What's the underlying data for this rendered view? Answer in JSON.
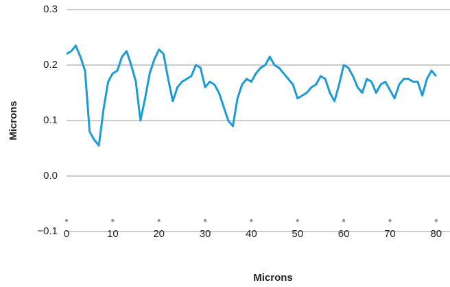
{
  "chart_data": {
    "type": "line",
    "x_label": "Microns",
    "y_label": "Microns",
    "x": [
      0,
      1,
      2,
      3,
      4,
      5,
      6,
      7,
      8,
      9,
      10,
      11,
      12,
      13,
      14,
      15,
      16,
      17,
      18,
      19,
      20,
      21,
      22,
      23,
      24,
      25,
      26,
      27,
      28,
      29,
      30,
      31,
      32,
      33,
      34,
      35,
      36,
      37,
      38,
      39,
      40,
      41,
      42,
      43,
      44,
      45,
      46,
      47,
      48,
      49,
      50,
      51,
      52,
      53,
      54,
      55,
      56,
      57,
      58,
      59,
      60,
      61,
      62,
      63,
      64,
      65,
      66,
      67,
      68,
      69,
      70,
      71,
      72,
      73,
      74,
      75,
      76,
      77,
      78,
      79,
      80
    ],
    "series": [
      {
        "color": "#1b9bd7",
        "values": [
          0.22,
          0.225,
          0.235,
          0.215,
          0.19,
          0.08,
          0.065,
          0.055,
          0.12,
          0.17,
          0.185,
          0.19,
          0.215,
          0.225,
          0.2,
          0.17,
          0.1,
          0.14,
          0.185,
          0.21,
          0.228,
          0.22,
          0.175,
          0.135,
          0.16,
          0.17,
          0.175,
          0.18,
          0.2,
          0.195,
          0.16,
          0.17,
          0.165,
          0.15,
          0.125,
          0.1,
          0.09,
          0.14,
          0.165,
          0.175,
          0.17,
          0.185,
          0.195,
          0.2,
          0.215,
          0.2,
          0.195,
          0.185,
          0.175,
          0.165,
          0.14,
          0.145,
          0.15,
          0.16,
          0.165,
          0.18,
          0.175,
          0.15,
          0.135,
          0.165,
          0.2,
          0.195,
          0.18,
          0.16,
          0.15,
          0.175,
          0.17,
          0.15,
          0.165,
          0.17,
          0.155,
          0.14,
          0.165,
          0.175,
          0.175,
          0.17,
          0.17,
          0.145,
          0.175,
          0.19,
          0.18
        ]
      }
    ],
    "xlim": [
      0,
      83
    ],
    "xticks": [
      0,
      10,
      20,
      30,
      40,
      50,
      60,
      70,
      80
    ],
    "ylim": [
      -0.1,
      0.3
    ],
    "yticks": [
      {
        "value": -0.1,
        "label": "−0.1"
      },
      {
        "value": 0,
        "label": "0.0"
      },
      0.1,
      0.2,
      0.3
    ],
    "grid": true
  }
}
